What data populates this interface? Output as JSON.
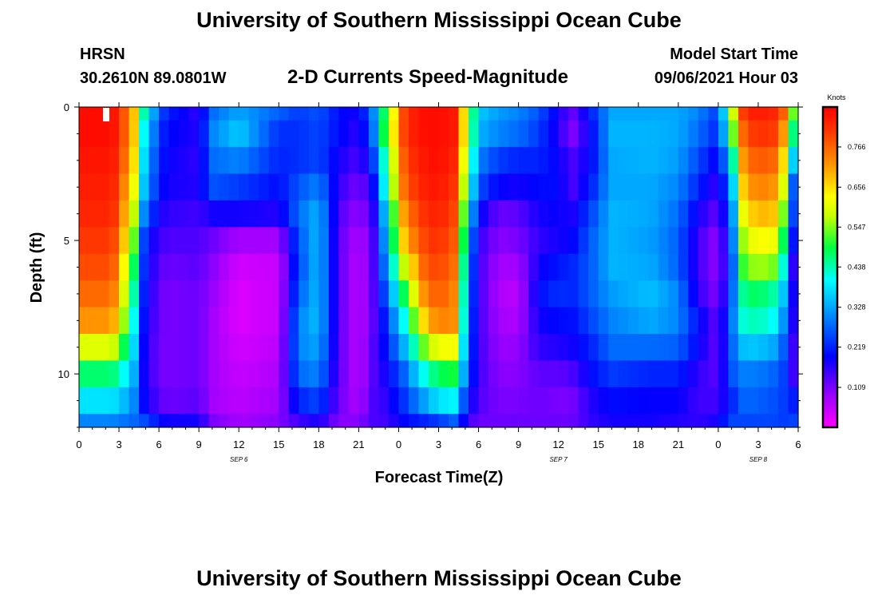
{
  "header": {
    "title": "University of Southern Mississippi Ocean Cube",
    "station": "HRSN",
    "coordinates": "30.2610N  89.0801W",
    "subtitle": "2-D Currents Speed-Magnitude",
    "model_start_label": "Model Start Time",
    "model_start_value": "09/06/2021 Hour 03"
  },
  "footer": {
    "title": "University of Southern Mississippi Ocean Cube"
  },
  "chart_data": {
    "type": "heatmap",
    "title": "2-D Currents Speed-Magnitude",
    "xlabel": "Forecast Time(Z)",
    "ylabel": "Depth (ft)",
    "x_range_hours": [
      0,
      54
    ],
    "y_range_ft": [
      0,
      12
    ],
    "x_tick_labels": [
      "0",
      "3",
      "6",
      "9",
      "12",
      "15",
      "18",
      "21",
      "0",
      "3",
      "6",
      "9",
      "12",
      "15",
      "18",
      "21",
      "0",
      "3",
      "6"
    ],
    "y_tick_labels": [
      "0",
      "5",
      "10"
    ],
    "date_labels": [
      {
        "text": "SEP 6",
        "hour": 12
      },
      {
        "text": "SEP 7",
        "hour": 36
      },
      {
        "text": "SEP 8",
        "hour": 51
      }
    ],
    "colorbar": {
      "units": "Knots",
      "range": [
        0,
        0.875
      ],
      "tick_values": [
        "0.766",
        "0.656",
        "0.547",
        "0.438",
        "0.328",
        "0.219",
        "0.109"
      ]
    },
    "depth_levels_ft": [
      0,
      1,
      2,
      3,
      4,
      5,
      6,
      7,
      8,
      9,
      10,
      11,
      12
    ],
    "speed_profiles": [
      {
        "hour": 0,
        "values": [
          0.86,
          0.86,
          0.85,
          0.84,
          0.83,
          0.81,
          0.79,
          0.76,
          0.72,
          0.6,
          0.47,
          0.38,
          0.3
        ]
      },
      {
        "hour": 2.5,
        "values": [
          0.86,
          0.86,
          0.85,
          0.84,
          0.83,
          0.81,
          0.79,
          0.76,
          0.72,
          0.6,
          0.47,
          0.38,
          0.3
        ]
      },
      {
        "hour": 4,
        "values": [
          0.72,
          0.72,
          0.7,
          0.66,
          0.62,
          0.58,
          0.52,
          0.48,
          0.44,
          0.4,
          0.36,
          0.32,
          0.28
        ]
      },
      {
        "hour": 5,
        "values": [
          0.4,
          0.36,
          0.33,
          0.31,
          0.26,
          0.2,
          0.19,
          0.18,
          0.17,
          0.16,
          0.16,
          0.18,
          0.25
        ]
      },
      {
        "hour": 6.5,
        "values": [
          0.22,
          0.2,
          0.19,
          0.18,
          0.16,
          0.14,
          0.12,
          0.11,
          0.11,
          0.11,
          0.11,
          0.12,
          0.18
        ]
      },
      {
        "hour": 9,
        "values": [
          0.16,
          0.17,
          0.16,
          0.17,
          0.15,
          0.14,
          0.13,
          0.12,
          0.12,
          0.12,
          0.12,
          0.13,
          0.18
        ]
      },
      {
        "hour": 10,
        "values": [
          0.28,
          0.3,
          0.28,
          0.26,
          0.18,
          0.12,
          0.1,
          0.09,
          0.08,
          0.08,
          0.08,
          0.08,
          0.11
        ]
      },
      {
        "hour": 12,
        "values": [
          0.33,
          0.36,
          0.3,
          0.24,
          0.18,
          0.08,
          0.04,
          0.03,
          0.03,
          0.04,
          0.05,
          0.06,
          0.08
        ]
      },
      {
        "hour": 15,
        "values": [
          0.27,
          0.23,
          0.22,
          0.2,
          0.17,
          0.08,
          0.05,
          0.05,
          0.05,
          0.06,
          0.07,
          0.08,
          0.1
        ]
      },
      {
        "hour": 16.5,
        "values": [
          0.24,
          0.23,
          0.23,
          0.26,
          0.28,
          0.26,
          0.25,
          0.27,
          0.3,
          0.3,
          0.28,
          0.22,
          0.15
        ]
      },
      {
        "hour": 18,
        "values": [
          0.26,
          0.25,
          0.25,
          0.3,
          0.34,
          0.35,
          0.35,
          0.35,
          0.35,
          0.33,
          0.3,
          0.25,
          0.18
        ]
      },
      {
        "hour": 19.5,
        "values": [
          0.2,
          0.2,
          0.18,
          0.16,
          0.14,
          0.13,
          0.13,
          0.13,
          0.13,
          0.13,
          0.13,
          0.12,
          0.1
        ]
      },
      {
        "hour": 21,
        "values": [
          0.18,
          0.16,
          0.14,
          0.11,
          0.09,
          0.07,
          0.06,
          0.06,
          0.06,
          0.06,
          0.06,
          0.07,
          0.1
        ]
      },
      {
        "hour": 22,
        "values": [
          0.28,
          0.26,
          0.22,
          0.17,
          0.14,
          0.12,
          0.12,
          0.12,
          0.12,
          0.13,
          0.13,
          0.14,
          0.14
        ]
      },
      {
        "hour": 23,
        "values": [
          0.5,
          0.52,
          0.45,
          0.42,
          0.36,
          0.33,
          0.3,
          0.26,
          0.22,
          0.2,
          0.18,
          0.16,
          0.15
        ]
      },
      {
        "hour": 24.5,
        "values": [
          0.82,
          0.82,
          0.8,
          0.78,
          0.74,
          0.7,
          0.6,
          0.5,
          0.42,
          0.35,
          0.28,
          0.24,
          0.2
        ]
      },
      {
        "hour": 26,
        "values": [
          0.86,
          0.86,
          0.85,
          0.84,
          0.82,
          0.8,
          0.78,
          0.74,
          0.68,
          0.55,
          0.42,
          0.33,
          0.22
        ]
      },
      {
        "hour": 27,
        "values": [
          0.86,
          0.86,
          0.86,
          0.85,
          0.84,
          0.82,
          0.8,
          0.78,
          0.74,
          0.62,
          0.48,
          0.38,
          0.24
        ]
      },
      {
        "hour": 28.5,
        "values": [
          0.84,
          0.84,
          0.82,
          0.8,
          0.78,
          0.76,
          0.74,
          0.72,
          0.72,
          0.62,
          0.5,
          0.4,
          0.28
        ]
      },
      {
        "hour": 29,
        "values": [
          0.6,
          0.6,
          0.55,
          0.5,
          0.45,
          0.4,
          0.36,
          0.34,
          0.32,
          0.3,
          0.28,
          0.22,
          0.16
        ]
      },
      {
        "hour": 30,
        "values": [
          0.36,
          0.34,
          0.3,
          0.26,
          0.2,
          0.16,
          0.15,
          0.15,
          0.15,
          0.15,
          0.15,
          0.14,
          0.12
        ]
      },
      {
        "hour": 31.5,
        "values": [
          0.32,
          0.3,
          0.24,
          0.19,
          0.12,
          0.1,
          0.08,
          0.07,
          0.08,
          0.09,
          0.1,
          0.11,
          0.12
        ]
      },
      {
        "hour": 33,
        "values": [
          0.3,
          0.28,
          0.22,
          0.18,
          0.13,
          0.11,
          0.08,
          0.06,
          0.07,
          0.09,
          0.1,
          0.11,
          0.12
        ]
      },
      {
        "hour": 34.5,
        "values": [
          0.26,
          0.24,
          0.22,
          0.2,
          0.18,
          0.16,
          0.18,
          0.2,
          0.18,
          0.16,
          0.13,
          0.12,
          0.12
        ]
      },
      {
        "hour": 36,
        "values": [
          0.18,
          0.17,
          0.19,
          0.2,
          0.19,
          0.18,
          0.21,
          0.23,
          0.2,
          0.17,
          0.13,
          0.11,
          0.12
        ]
      },
      {
        "hour": 37,
        "values": [
          0.12,
          0.1,
          0.14,
          0.14,
          0.17,
          0.19,
          0.22,
          0.22,
          0.2,
          0.18,
          0.14,
          0.11,
          0.12
        ]
      },
      {
        "hour": 38.5,
        "values": [
          0.22,
          0.2,
          0.2,
          0.22,
          0.25,
          0.27,
          0.27,
          0.27,
          0.25,
          0.22,
          0.2,
          0.17,
          0.16
        ]
      },
      {
        "hour": 40,
        "values": [
          0.33,
          0.34,
          0.33,
          0.33,
          0.34,
          0.34,
          0.34,
          0.32,
          0.3,
          0.28,
          0.24,
          0.2,
          0.18
        ]
      },
      {
        "hour": 43,
        "values": [
          0.33,
          0.34,
          0.34,
          0.33,
          0.33,
          0.32,
          0.33,
          0.35,
          0.33,
          0.28,
          0.22,
          0.19,
          0.18
        ]
      },
      {
        "hour": 45,
        "values": [
          0.33,
          0.33,
          0.32,
          0.3,
          0.28,
          0.27,
          0.27,
          0.3,
          0.3,
          0.27,
          0.22,
          0.19,
          0.17
        ]
      },
      {
        "hour": 46.5,
        "values": [
          0.3,
          0.28,
          0.25,
          0.22,
          0.18,
          0.15,
          0.15,
          0.16,
          0.2,
          0.19,
          0.16,
          0.15,
          0.16
        ]
      },
      {
        "hour": 48,
        "values": [
          0.24,
          0.22,
          0.18,
          0.15,
          0.12,
          0.09,
          0.09,
          0.1,
          0.12,
          0.12,
          0.13,
          0.15,
          0.18
        ]
      },
      {
        "hour": 49,
        "values": [
          0.55,
          0.5,
          0.4,
          0.32,
          0.28,
          0.26,
          0.24,
          0.26,
          0.28,
          0.27,
          0.26,
          0.22,
          0.25
        ]
      },
      {
        "hour": 50,
        "values": [
          0.84,
          0.8,
          0.76,
          0.72,
          0.66,
          0.6,
          0.55,
          0.48,
          0.44,
          0.36,
          0.3,
          0.28,
          0.25
        ]
      },
      {
        "hour": 52,
        "values": [
          0.84,
          0.82,
          0.78,
          0.74,
          0.7,
          0.64,
          0.56,
          0.46,
          0.42,
          0.34,
          0.28,
          0.26,
          0.25
        ]
      },
      {
        "hour": 53,
        "values": [
          0.76,
          0.7,
          0.64,
          0.58,
          0.52,
          0.46,
          0.4,
          0.34,
          0.3,
          0.26,
          0.24,
          0.24,
          0.24
        ]
      },
      {
        "hour": 54,
        "values": [
          0.4,
          0.32,
          0.2,
          0.08,
          0.09,
          0.06,
          0.02,
          0.09,
          0.1,
          0.09,
          0.1,
          0.2,
          0.25
        ]
      }
    ]
  }
}
